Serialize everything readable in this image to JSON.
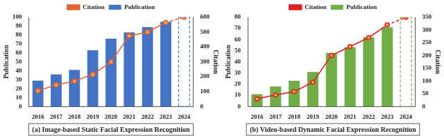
{
  "chart_data": [
    {
      "type": "bar",
      "title": "(a) Image-based Static Facial Expression Recognition",
      "categories": [
        "2016",
        "2017",
        "2018",
        "2019",
        "2020",
        "2021",
        "2022",
        "2023",
        "2024"
      ],
      "series": [
        {
          "name": "Publication",
          "type": "bar",
          "color": "#4472c4",
          "values": [
            29,
            36,
            41,
            63,
            76,
            83,
            89,
            95,
            100
          ]
        },
        {
          "name": "Citation",
          "type": "line",
          "color": "#e8612c",
          "axis": "y2",
          "marker": "circle",
          "values": [
            105,
            145,
            170,
            215,
            300,
            475,
            500,
            565,
            600
          ]
        }
      ],
      "y_label": "Publication",
      "y2_label": "Citation",
      "ylim": [
        0,
        100
      ],
      "yticks": [
        0,
        10,
        20,
        30,
        40,
        50,
        60,
        70,
        80,
        90,
        100
      ],
      "y2lim": [
        0,
        600
      ],
      "y2ticks": [
        0,
        100,
        200,
        300,
        400,
        500,
        600
      ],
      "legend": "top",
      "grid": false
    },
    {
      "type": "bar",
      "title": "(b) Video-based Dynamic Facial Expression Recognition",
      "categories": [
        "2016",
        "2017",
        "2018",
        "2019",
        "2020",
        "2021",
        "2022",
        "2023",
        "2024"
      ],
      "series": [
        {
          "name": "Publication",
          "type": "bar",
          "color": "#70ad47",
          "values": [
            11,
            18,
            23,
            31,
            48,
            53,
            62,
            71,
            80
          ]
        },
        {
          "name": "Citation",
          "type": "line",
          "color": "#e02020",
          "axis": "y2",
          "marker": "circle",
          "values": [
            30,
            45,
            58,
            95,
            200,
            235,
            270,
            320,
            350
          ]
        }
      ],
      "y_label": "Publication",
      "y2_label": "Citation",
      "ylim": [
        0,
        80
      ],
      "yticks": [
        0,
        10,
        20,
        30,
        40,
        50,
        60,
        70,
        80
      ],
      "y2lim": [
        0,
        350
      ],
      "y2ticks": [
        0,
        50,
        100,
        150,
        200,
        250,
        300,
        350
      ],
      "legend": "top",
      "grid": false
    }
  ]
}
